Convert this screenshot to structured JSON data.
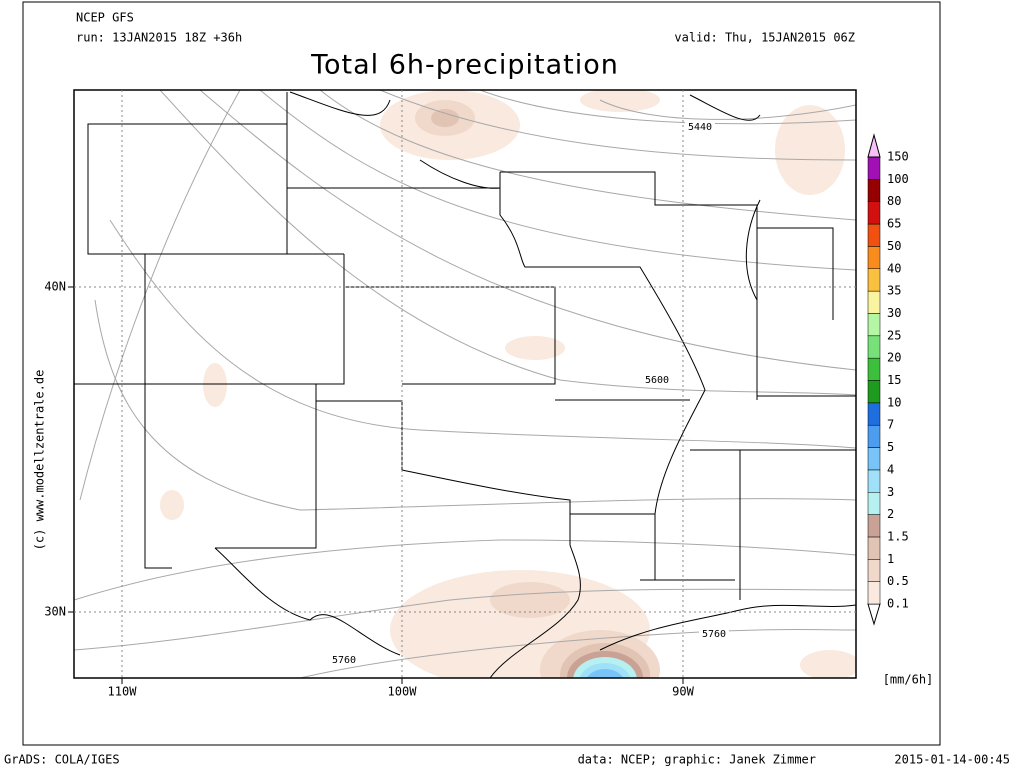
{
  "header": {
    "model": "NCEP GFS",
    "run": "run: 13JAN2015 18Z +36h",
    "valid": "valid: Thu, 15JAN2015 06Z"
  },
  "title": "Total 6h-precipitation",
  "map": {
    "lat_labels": [
      "40N",
      "30N"
    ],
    "lon_labels": [
      "110W",
      "100W",
      "90W"
    ],
    "contour_labels": [
      "5440",
      "5600",
      "5760",
      "5760"
    ]
  },
  "colorbar": {
    "levels": [
      0.1,
      0.5,
      1,
      1.5,
      2,
      3,
      4,
      5,
      7,
      10,
      15,
      20,
      25,
      30,
      35,
      40,
      50,
      65,
      80,
      100,
      150
    ],
    "colors": [
      "#ffffff",
      "#f9e9de",
      "#f0d9ca",
      "#e2c4b4",
      "#c9a295",
      "#b6f0f0",
      "#a0e0f8",
      "#78c4f8",
      "#4c9cf0",
      "#1e6ee0",
      "#1e9a1e",
      "#3cc03c",
      "#78e078",
      "#b4f6a4",
      "#faf4a0",
      "#fac040",
      "#fa8c1e",
      "#f05010",
      "#d21010",
      "#960000",
      "#a010b4",
      "#f040f0",
      "#f8c0f8"
    ],
    "unit": "[mm/6h]"
  },
  "credit": "(c) www.modellzentrale.de",
  "footer": {
    "left": "GrADS: COLA/IGES",
    "center": "data: NCEP; graphic: Janek Zimmer",
    "right": "2015-01-14-00:45"
  }
}
